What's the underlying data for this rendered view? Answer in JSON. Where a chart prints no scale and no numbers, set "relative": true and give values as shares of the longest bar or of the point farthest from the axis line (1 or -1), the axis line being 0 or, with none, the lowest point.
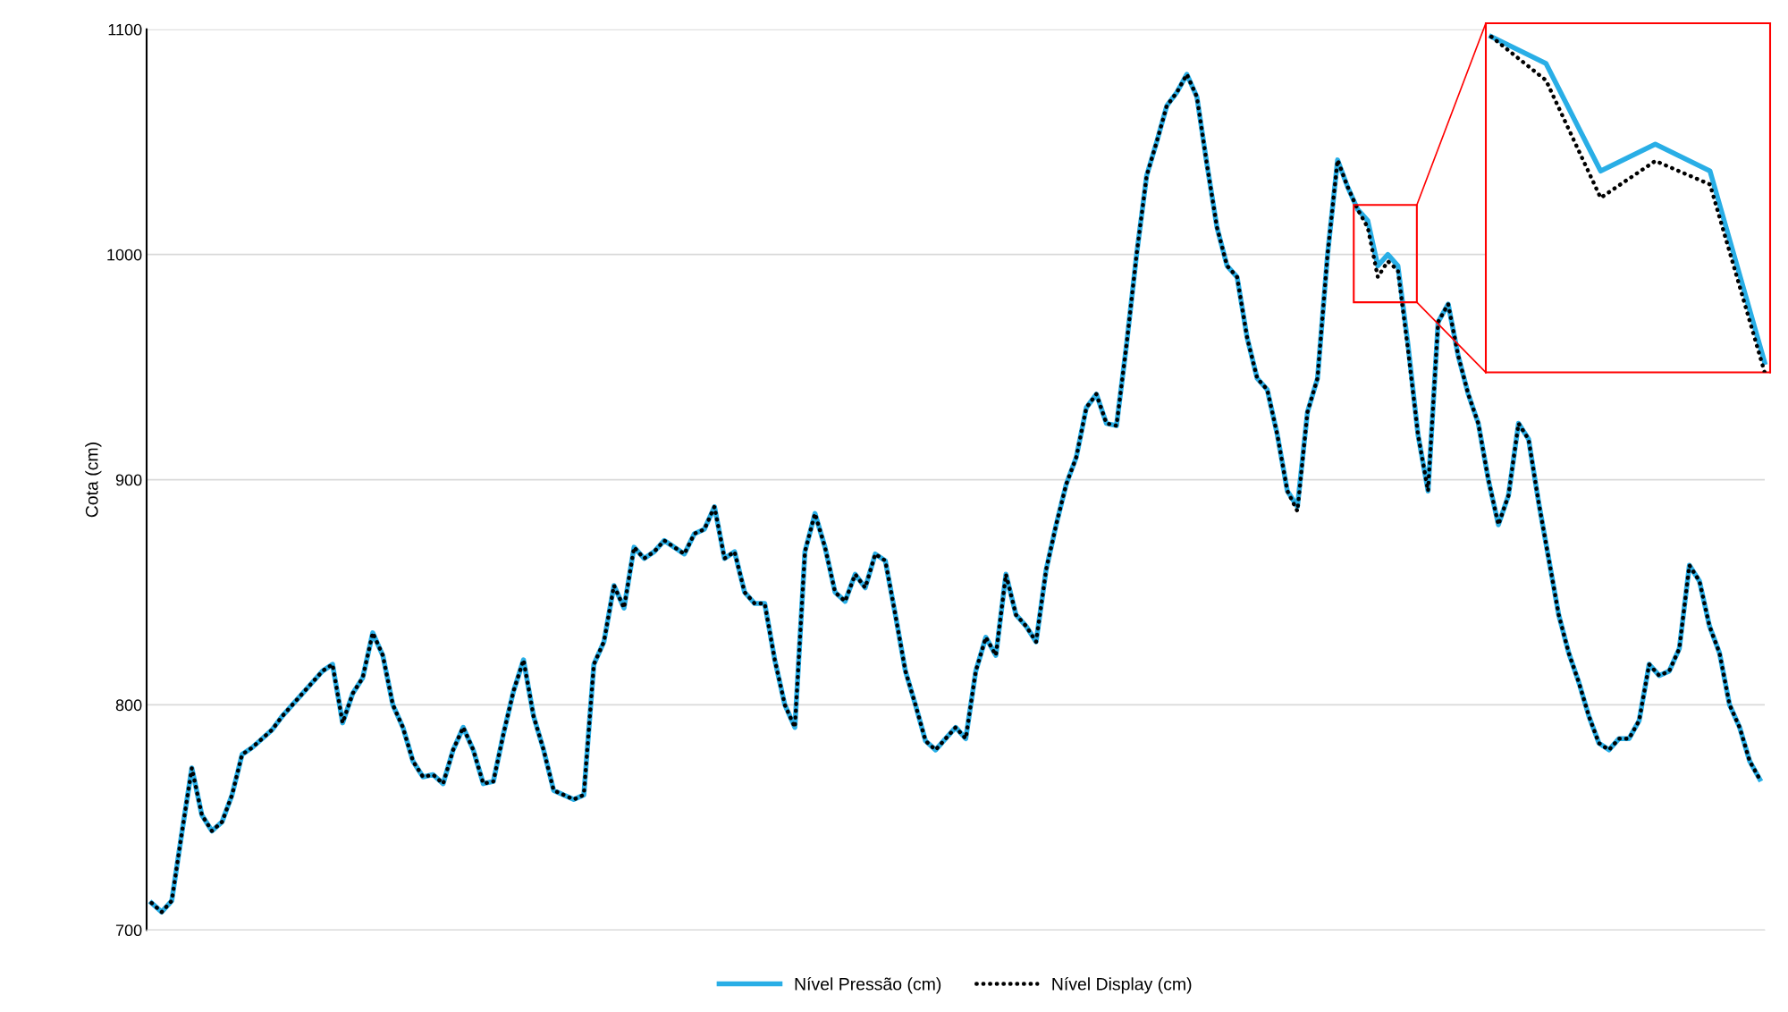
{
  "chart_data": [
    {
      "type": "line",
      "ylabel": "Cota (cm)",
      "ylim": [
        700,
        1100
      ],
      "yticks": [
        700,
        800,
        900,
        1000,
        1100
      ],
      "grid": "y",
      "legend": "bottom",
      "tick_labels": "y",
      "marker": "none",
      "categories": [
        null,
        null,
        null,
        null,
        null,
        null,
        null,
        null,
        null,
        null,
        null,
        null,
        null,
        null,
        null,
        null,
        null,
        null,
        null,
        null,
        null,
        null,
        null,
        null,
        null,
        null,
        null,
        null,
        null,
        null,
        null,
        null,
        null,
        null,
        null,
        null,
        null,
        null,
        null,
        null,
        null,
        null,
        null,
        null,
        null,
        null,
        null,
        null,
        null,
        null,
        null,
        null,
        null,
        null,
        null,
        null,
        null,
        null,
        null,
        null,
        null,
        null,
        null,
        null,
        null,
        null,
        null,
        null,
        null,
        null,
        null,
        null,
        null,
        null,
        null,
        null,
        null,
        null,
        null,
        null,
        null,
        null,
        null,
        null,
        null,
        null,
        null,
        null,
        null,
        null,
        null,
        null,
        null,
        null,
        null,
        null,
        null,
        null,
        null,
        null,
        null,
        null,
        null,
        null,
        null,
        null,
        null,
        null,
        null,
        null,
        null,
        null,
        null,
        null,
        null,
        null,
        null,
        null,
        null,
        null,
        null,
        null,
        null,
        null,
        null,
        null,
        null,
        null,
        null,
        null,
        null,
        null,
        null,
        null,
        null,
        null,
        null,
        null,
        null,
        null,
        null,
        null,
        null,
        null,
        null,
        null,
        null,
        null,
        null,
        null,
        null,
        null,
        null,
        null,
        null,
        null,
        null,
        null,
        null,
        null,
        null
      ],
      "series": [
        {
          "name": "Nível Pressão (cm)",
          "color": "#29aee6",
          "line_style": "solid",
          "values": [
            712,
            708,
            713,
            743,
            772,
            751,
            744,
            748,
            760,
            778,
            781,
            785,
            789,
            795,
            800,
            805,
            810,
            815,
            818,
            792,
            805,
            812,
            832,
            822,
            800,
            790,
            775,
            768,
            769,
            765,
            780,
            790,
            780,
            765,
            766,
            787,
            806,
            820,
            795,
            780,
            762,
            760,
            758,
            760,
            818,
            828,
            853,
            843,
            870,
            865,
            868,
            873,
            870,
            867,
            876,
            878,
            888,
            865,
            868,
            850,
            845,
            845,
            820,
            800,
            790,
            868,
            885,
            870,
            850,
            846,
            858,
            852,
            867,
            864,
            840,
            815,
            800,
            784,
            780,
            785,
            790,
            785,
            815,
            830,
            822,
            858,
            840,
            835,
            828,
            860,
            880,
            898,
            910,
            932,
            938,
            925,
            924,
            960,
            1000,
            1035,
            1050,
            1066,
            1072,
            1080,
            1070,
            1040,
            1012,
            995,
            990,
            963,
            945,
            940,
            920,
            895,
            888,
            930,
            945,
            1000,
            1042,
            1030,
            1020,
            1015,
            995,
            1000,
            995,
            960,
            920,
            895,
            970,
            978,
            955,
            938,
            925,
            900,
            880,
            893,
            925,
            918,
            890,
            865,
            840,
            823,
            810,
            795,
            783,
            780,
            785,
            785,
            793,
            818,
            813,
            815,
            825,
            862,
            855,
            835,
            823,
            800,
            790,
            775,
            767
          ]
        },
        {
          "name": "Nível Display (cm)",
          "color": "#000000",
          "line_style": "dotted",
          "values": [
            712,
            708,
            713,
            743,
            772,
            751,
            744,
            748,
            760,
            778,
            781,
            785,
            789,
            795,
            800,
            805,
            810,
            815,
            818,
            792,
            805,
            812,
            832,
            822,
            800,
            790,
            775,
            768,
            769,
            765,
            780,
            790,
            780,
            765,
            766,
            787,
            806,
            820,
            795,
            780,
            762,
            760,
            758,
            760,
            818,
            828,
            853,
            843,
            870,
            865,
            868,
            873,
            870,
            867,
            876,
            878,
            888,
            865,
            868,
            850,
            845,
            845,
            820,
            800,
            790,
            868,
            885,
            870,
            850,
            846,
            858,
            852,
            867,
            864,
            840,
            815,
            800,
            784,
            780,
            785,
            790,
            785,
            815,
            830,
            822,
            858,
            840,
            835,
            828,
            860,
            880,
            898,
            910,
            932,
            938,
            925,
            924,
            960,
            1000,
            1035,
            1050,
            1066,
            1072,
            1080,
            1070,
            1040,
            1012,
            995,
            990,
            963,
            945,
            940,
            920,
            895,
            886,
            930,
            945,
            1000,
            1042,
            1030,
            1020,
            1012,
            990,
            997,
            993,
            958,
            920,
            895,
            970,
            978,
            955,
            938,
            925,
            900,
            880,
            893,
            925,
            918,
            890,
            865,
            840,
            823,
            810,
            795,
            783,
            780,
            785,
            785,
            793,
            818,
            813,
            815,
            825,
            862,
            855,
            835,
            823,
            800,
            790,
            775,
            767
          ]
        }
      ]
    },
    {
      "type": "line",
      "relative": true,
      "categories": [
        null,
        null,
        null,
        null,
        null,
        null
      ],
      "series": [
        {
          "color": "#29aee6",
          "line_style": "solid",
          "values": [
            1,
            0.92,
            0.6,
            0.68,
            0.6,
            0.03
          ]
        },
        {
          "color": "#000000",
          "line_style": "dotted",
          "values": [
            1,
            0.87,
            0.52,
            0.63,
            0.56,
            0
          ]
        }
      ]
    }
  ]
}
